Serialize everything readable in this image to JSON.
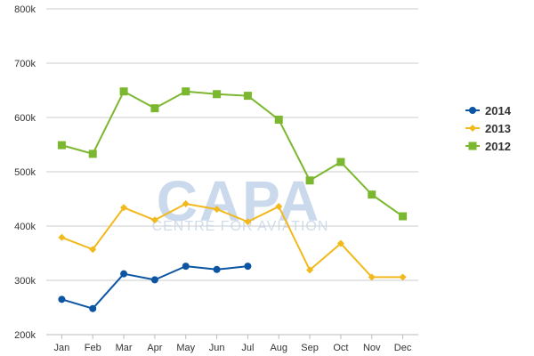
{
  "watermark": {
    "brand": "CAPA",
    "tagline": "CENTRE FOR AVIATION"
  },
  "chart_data": {
    "type": "line",
    "categories": [
      "Jan",
      "Feb",
      "Mar",
      "Apr",
      "May",
      "Jun",
      "Jul",
      "Aug",
      "Sep",
      "Oct",
      "Nov",
      "Dec"
    ],
    "ylim": [
      200000,
      800000
    ],
    "yticks": [
      200000,
      300000,
      400000,
      500000,
      600000,
      700000,
      800000
    ],
    "ytick_labels": [
      "200k",
      "300k",
      "400k",
      "500k",
      "600k",
      "700k",
      "800k"
    ],
    "grid": true,
    "legend_position": "right",
    "series": [
      {
        "name": "2014",
        "color": "#0b55a2",
        "marker": "circle",
        "values": [
          265000,
          248000,
          312000,
          301000,
          326000,
          320000,
          326000,
          null,
          null,
          null,
          null,
          null
        ]
      },
      {
        "name": "2013",
        "color": "#f2b91c",
        "marker": "diamond",
        "values": [
          379000,
          357000,
          434000,
          411000,
          441000,
          431000,
          408000,
          436000,
          319000,
          368000,
          306000,
          306000
        ]
      },
      {
        "name": "2012",
        "color": "#7cb82f",
        "marker": "square",
        "values": [
          549000,
          533000,
          648000,
          617000,
          648000,
          643000,
          640000,
          596000,
          484000,
          518000,
          458000,
          418000
        ]
      }
    ]
  }
}
